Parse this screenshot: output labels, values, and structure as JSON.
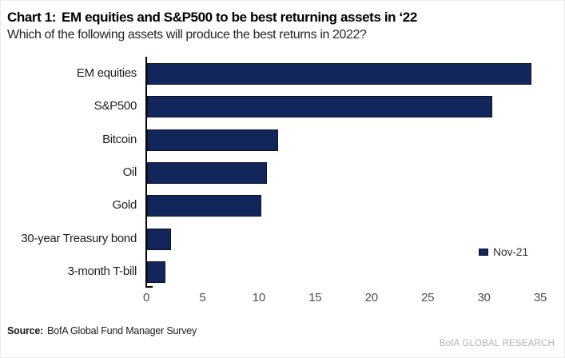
{
  "page": {
    "title_label": "Chart 1:",
    "title": "EM equities and S&P500 to be best returning assets in ‘22",
    "subtitle": "Which of the following assets will produce the best returns in 2022?",
    "source_label": "Source:",
    "source": "BofA Global Fund Manager Survey",
    "branding": "BofA GLOBAL RESEARCH"
  },
  "chart_data": {
    "type": "bar",
    "orientation": "horizontal",
    "title": "Chart 1: EM equities and S&P500 to be best returning assets in ‘22",
    "subtitle": "Which of the following assets will produce the best returns in 2022?",
    "categories": [
      "EM equities",
      "S&P500",
      "Bitcoin",
      "Oil",
      "Gold",
      "30-year Treasury bond",
      "3-month T-bill"
    ],
    "series": [
      {
        "name": "Nov-21",
        "values": [
          34,
          30.5,
          11.5,
          10.5,
          10,
          2,
          1.5
        ]
      }
    ],
    "xlabel": "",
    "ylabel": "",
    "xlim": [
      0,
      35
    ],
    "xticks": [
      0,
      5,
      10,
      15,
      20,
      25,
      30,
      35
    ],
    "grid": false,
    "legend_position": "right-middle",
    "bar_color": "#13265c",
    "bar_border_color": "#0a1228"
  }
}
